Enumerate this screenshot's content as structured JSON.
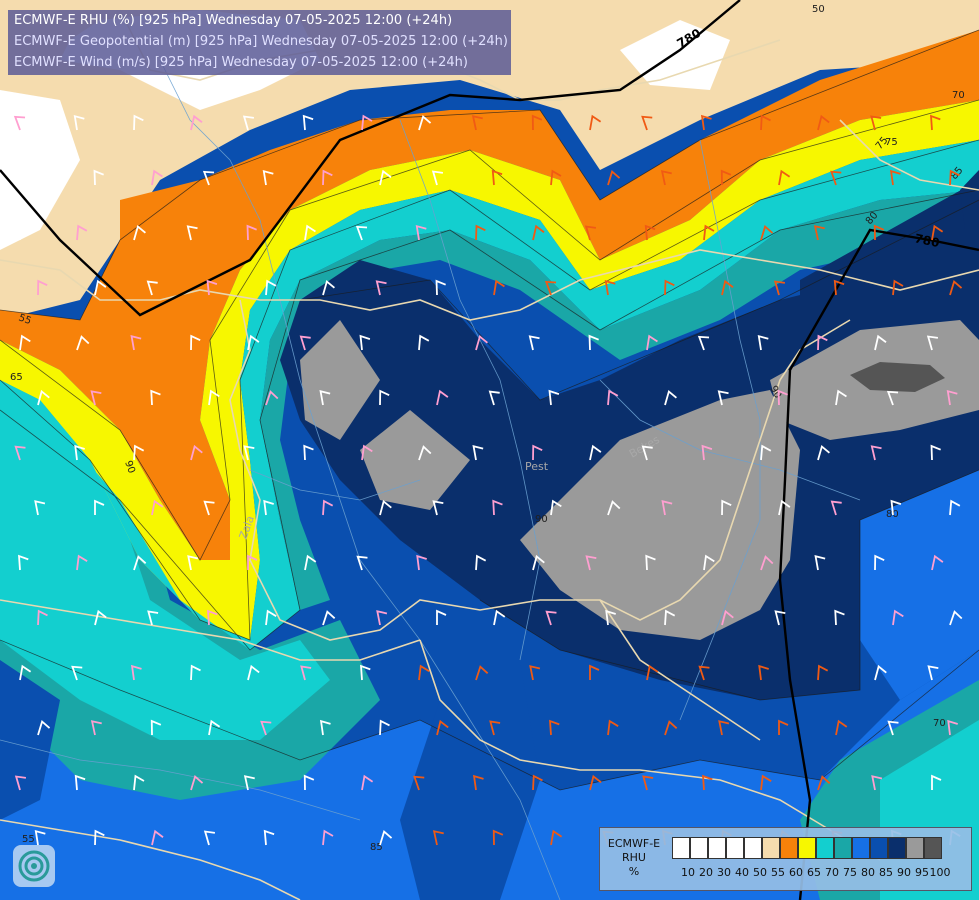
{
  "title": {
    "line1": "ECMWF-E RHU (%) [925 hPa] Wednesday 07-05-2025 12:00 (+24h)",
    "line2": "ECMWF-E Geopotential (m) [925 hPa] Wednesday 07-05-2025 12:00 (+24h)",
    "line3": "ECMWF-E Wind (m/s) [925 hPa] Wednesday 07-05-2025 12:00 (+24h)"
  },
  "legend": {
    "title_lines": [
      "ECMWF-E",
      "RHU",
      "%"
    ],
    "ticks": [
      "10",
      "20",
      "30",
      "40",
      "50",
      "55",
      "60",
      "65",
      "70",
      "75",
      "80",
      "85",
      "90",
      "95",
      "100"
    ],
    "colors": [
      "#ffffff",
      "#ffffff",
      "#ffffff",
      "#ffffff",
      "#ffffff",
      "#f5dcae",
      "#f7820a",
      "#f7f700",
      "#13cfcf",
      "#1aa7a7",
      "#1670e6",
      "#0a4faf",
      "#0a2f6c",
      "#9a9a9a",
      "#555555"
    ]
  },
  "contour_labels": {
    "geopotential": [
      "780",
      "780"
    ],
    "rhu": [
      "50",
      "55",
      "65",
      "70",
      "75",
      "80",
      "85",
      "90",
      "90",
      "90",
      "80",
      "70",
      "75",
      "85",
      "55"
    ]
  },
  "place_labels": [
    "Pest",
    "Bekes",
    "Zala"
  ],
  "colors": {
    "geopotential_line": "#000000",
    "border_line": "#e8d8b0",
    "river_line": "#6aa0d0",
    "barb_orange": "#f05a14",
    "barb_pink": "#ff9fd0",
    "barb_white": "#ffffff"
  }
}
